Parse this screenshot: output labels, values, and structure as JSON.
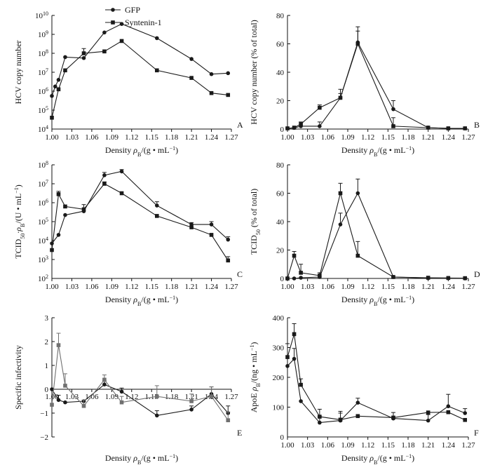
{
  "legend": {
    "items": [
      {
        "label": "GFP",
        "marker": "circle"
      },
      {
        "label": "Syntenin-1",
        "marker": "square"
      }
    ]
  },
  "colors": {
    "series": "#1a1a1a",
    "syntenin_gray": "#707070",
    "axis": "#111111"
  },
  "chart_data": [
    {
      "panel": "A",
      "type": "line",
      "ylabel_parts": [
        "HCV copy number",
        ""
      ],
      "xlabel": [
        "Density ",
        "ρ",
        "B",
        "/(g • mL",
        "−1",
        ")"
      ],
      "x_ticks": [
        "1.00",
        "1.03",
        "1.06",
        "1.09",
        "1.12",
        "1.15",
        "1.18",
        "1.21",
        "1.24",
        "1.27"
      ],
      "xlim": [
        1.0,
        1.27
      ],
      "yscale": "log",
      "ylim": [
        4,
        10
      ],
      "y_ticks": [
        {
          "base": "10",
          "exp": "4",
          "v": 4
        },
        {
          "base": "10",
          "exp": "5",
          "v": 5
        },
        {
          "base": "10",
          "exp": "6",
          "v": 6
        },
        {
          "base": "10",
          "exp": "7",
          "v": 7
        },
        {
          "base": "10",
          "exp": "8",
          "v": 8
        },
        {
          "base": "10",
          "exp": "9",
          "v": 9
        },
        {
          "base": "10",
          "exp": "10",
          "v": 10
        }
      ],
      "series": [
        {
          "name": "GFP",
          "marker": "circle",
          "points": [
            [
              1.0,
              5.75,
              0
            ],
            [
              1.005,
              6.25,
              0
            ],
            [
              1.01,
              6.6,
              0
            ],
            [
              1.02,
              7.8,
              0
            ],
            [
              1.048,
              7.75,
              0
            ],
            [
              1.079,
              9.1,
              0
            ],
            [
              1.105,
              9.55,
              0
            ],
            [
              1.158,
              8.8,
              0
            ],
            [
              1.21,
              7.7,
              0
            ],
            [
              1.24,
              6.9,
              0
            ],
            [
              1.265,
              6.95,
              0
            ]
          ]
        },
        {
          "name": "Syntenin-1",
          "marker": "square",
          "points": [
            [
              1.0,
              4.6,
              0
            ],
            [
              1.01,
              6.1,
              0
            ],
            [
              1.02,
              7.1,
              0
            ],
            [
              1.048,
              8.0,
              0.25
            ],
            [
              1.079,
              8.1,
              0
            ],
            [
              1.105,
              8.65,
              0
            ],
            [
              1.158,
              7.1,
              0
            ],
            [
              1.21,
              6.7,
              0
            ],
            [
              1.24,
              5.9,
              0
            ],
            [
              1.265,
              5.8,
              0
            ]
          ]
        }
      ]
    },
    {
      "panel": "B",
      "type": "line",
      "ylabel_parts": [
        "HCV copy number (% of total)",
        ""
      ],
      "xlabel": [
        "Density ",
        "ρ",
        "B",
        "/(g • mL",
        "−1",
        ")"
      ],
      "x_ticks": [
        "1.00",
        "1.03",
        "1.06",
        "1.09",
        "1.12",
        "1.15",
        "1.18",
        "1.21",
        "1.24",
        "1.27"
      ],
      "xlim": [
        1.0,
        1.27
      ],
      "yscale": "linear",
      "ylim": [
        0,
        80
      ],
      "y_ticks": [
        {
          "label": "0",
          "v": 0
        },
        {
          "label": "20",
          "v": 20
        },
        {
          "label": "40",
          "v": 40
        },
        {
          "label": "60",
          "v": 60
        },
        {
          "label": "80",
          "v": 80
        }
      ],
      "series": [
        {
          "name": "GFP",
          "marker": "circle",
          "points": [
            [
              1.0,
              0.5,
              0
            ],
            [
              1.01,
              0.8,
              0
            ],
            [
              1.02,
              2,
              0
            ],
            [
              1.048,
              2,
              3
            ],
            [
              1.079,
              22,
              3
            ],
            [
              1.105,
              61,
              11
            ],
            [
              1.158,
              14,
              6
            ],
            [
              1.21,
              1,
              0
            ],
            [
              1.24,
              0.5,
              0
            ],
            [
              1.265,
              0.5,
              0
            ]
          ]
        },
        {
          "name": "Syntenin-1",
          "marker": "square",
          "points": [
            [
              1.0,
              0.5,
              0
            ],
            [
              1.01,
              1,
              0
            ],
            [
              1.02,
              3.5,
              1.5
            ],
            [
              1.048,
              15,
              2
            ],
            [
              1.079,
              22,
              6
            ],
            [
              1.105,
              60,
              9
            ],
            [
              1.158,
              2,
              6
            ],
            [
              1.21,
              1,
              0
            ],
            [
              1.24,
              0.5,
              0
            ],
            [
              1.265,
              0.5,
              0
            ]
          ]
        }
      ]
    },
    {
      "panel": "C",
      "type": "line",
      "ylabel_parts": [
        "TCID",
        "50",
        "·ρ",
        "B",
        "/(U • mL",
        "−1",
        ")"
      ],
      "xlabel": [
        "Density ",
        "ρ",
        "B",
        "/(g • mL",
        "−1",
        ")"
      ],
      "x_ticks": [
        "1.00",
        "1.03",
        "1.06",
        "1.09",
        "1.12",
        "1.15",
        "1.18",
        "1.21",
        "1.24",
        "1.27"
      ],
      "xlim": [
        1.0,
        1.27
      ],
      "yscale": "log",
      "ylim": [
        2,
        8
      ],
      "y_ticks": [
        {
          "base": "10",
          "exp": "2",
          "v": 2
        },
        {
          "base": "10",
          "exp": "3",
          "v": 3
        },
        {
          "base": "10",
          "exp": "4",
          "v": 4
        },
        {
          "base": "10",
          "exp": "5",
          "v": 5
        },
        {
          "base": "10",
          "exp": "6",
          "v": 6
        },
        {
          "base": "10",
          "exp": "7",
          "v": 7
        },
        {
          "base": "10",
          "exp": "8",
          "v": 8
        }
      ],
      "series": [
        {
          "name": "GFP",
          "marker": "circle",
          "points": [
            [
              1.0,
              3.85,
              0
            ],
            [
              1.01,
              4.3,
              0
            ],
            [
              1.02,
              5.35,
              0
            ],
            [
              1.048,
              5.55,
              0
            ],
            [
              1.079,
              7.45,
              0.15
            ],
            [
              1.105,
              7.65,
              0.1
            ],
            [
              1.158,
              5.85,
              0.2
            ],
            [
              1.21,
              4.85,
              0.1
            ],
            [
              1.24,
              4.85,
              0.15
            ],
            [
              1.265,
              4.05,
              0.15
            ]
          ]
        },
        {
          "name": "Syntenin-1",
          "marker": "square",
          "points": [
            [
              1.0,
              3.5,
              0
            ],
            [
              1.01,
              6.45,
              0.15
            ],
            [
              1.02,
              5.8,
              0
            ],
            [
              1.048,
              5.65,
              0.25
            ],
            [
              1.079,
              7.0,
              0.1
            ],
            [
              1.105,
              6.5,
              0
            ],
            [
              1.158,
              5.3,
              0
            ],
            [
              1.21,
              4.7,
              0
            ],
            [
              1.24,
              4.3,
              0
            ],
            [
              1.265,
              2.95,
              0.2
            ]
          ]
        }
      ]
    },
    {
      "panel": "D",
      "type": "line",
      "ylabel_parts": [
        "TCID",
        "50",
        " (% of total)"
      ],
      "xlabel": [
        "Density ",
        "ρ",
        "B",
        "/(g • mL",
        "−1",
        ")"
      ],
      "x_ticks": [
        "1.00",
        "1.03",
        "1.06",
        "1.09",
        "1.12",
        "1.15",
        "1.18",
        "1.21",
        "1.24",
        "1.27"
      ],
      "xlim": [
        1.0,
        1.27
      ],
      "yscale": "linear",
      "ylim": [
        0,
        80
      ],
      "y_ticks": [
        {
          "label": "0",
          "v": 0
        },
        {
          "label": "20",
          "v": 20
        },
        {
          "label": "40",
          "v": 40
        },
        {
          "label": "60",
          "v": 60
        },
        {
          "label": "80",
          "v": 80
        }
      ],
      "series": [
        {
          "name": "GFP",
          "marker": "circle",
          "points": [
            [
              1.0,
              0,
              0
            ],
            [
              1.01,
              0,
              0
            ],
            [
              1.02,
              0.5,
              0
            ],
            [
              1.048,
              1,
              0
            ],
            [
              1.079,
              38,
              8
            ],
            [
              1.105,
              60,
              10
            ],
            [
              1.158,
              1,
              0
            ],
            [
              1.21,
              0.3,
              0
            ],
            [
              1.24,
              0.3,
              0
            ],
            [
              1.265,
              0,
              0
            ]
          ]
        },
        {
          "name": "Syntenin-1",
          "marker": "square",
          "points": [
            [
              1.0,
              0,
              0
            ],
            [
              1.01,
              16,
              3
            ],
            [
              1.02,
              4,
              6
            ],
            [
              1.048,
              2,
              2
            ],
            [
              1.079,
              60,
              7
            ],
            [
              1.105,
              16,
              10
            ],
            [
              1.158,
              1,
              0
            ],
            [
              1.21,
              0.5,
              0
            ],
            [
              1.24,
              0.3,
              0
            ],
            [
              1.265,
              0.2,
              0
            ]
          ]
        }
      ]
    },
    {
      "panel": "E",
      "type": "line",
      "ylabel_parts": [
        "Specific infectivity",
        ""
      ],
      "xlabel": [
        "Density ",
        "ρ",
        "B",
        "/(g • mL",
        "−1",
        ")"
      ],
      "x_ticks": [
        "1.00",
        "1.03",
        "1.06",
        "1.09",
        "1.12",
        "1.15",
        "1.18",
        "1.21",
        "1.24",
        "1.27"
      ],
      "xlim": [
        1.0,
        1.27
      ],
      "yscale": "linear",
      "ylim": [
        -2,
        3
      ],
      "y_ticks": [
        {
          "label": "−2",
          "v": -2
        },
        {
          "label": "−1",
          "v": -1
        },
        {
          "label": "0",
          "v": 0
        },
        {
          "label": "1",
          "v": 1
        },
        {
          "label": "2",
          "v": 2
        },
        {
          "label": "3",
          "v": 3
        }
      ],
      "series": [
        {
          "name": "GFP",
          "marker": "circle",
          "points": [
            [
              1.0,
              0,
              0
            ],
            [
              1.01,
              -0.45,
              0.2
            ],
            [
              1.02,
              -0.55,
              0
            ],
            [
              1.048,
              -0.5,
              0
            ],
            [
              1.079,
              0.2,
              0.15
            ],
            [
              1.105,
              -0.1,
              0.15
            ],
            [
              1.158,
              -1.1,
              0.2
            ],
            [
              1.21,
              -0.85,
              0.15
            ],
            [
              1.24,
              -0.2,
              0.3
            ],
            [
              1.265,
              -1.0,
              0.3
            ]
          ]
        },
        {
          "name": "Syntenin-1",
          "marker": "square",
          "points": [
            [
              1.0,
              -0.65,
              0
            ],
            [
              1.01,
              1.85,
              0.5
            ],
            [
              1.02,
              0.15,
              0.5
            ],
            [
              1.048,
              -0.7,
              0.25
            ],
            [
              1.079,
              0.4,
              0.2
            ],
            [
              1.105,
              -0.55,
              0.25
            ],
            [
              1.158,
              -0.3,
              0.45
            ],
            [
              1.21,
              -0.5,
              0.3
            ],
            [
              1.24,
              -0.3,
              0.4
            ],
            [
              1.265,
              -1.3,
              0.35
            ]
          ]
        }
      ]
    },
    {
      "panel": "F",
      "type": "line",
      "ylabel_parts": [
        "ApoE ",
        "ρ",
        "B",
        "/(ng • mL",
        "−1",
        ")"
      ],
      "xlabel": [
        "Density ",
        "ρ",
        "B",
        "/(g • mL",
        "−1",
        ")"
      ],
      "x_ticks": [
        "1.00",
        "1.03",
        "1.06",
        "1.09",
        "1.12",
        "1.15",
        "1.18",
        "1.21",
        "1.24",
        "1.27"
      ],
      "xlim": [
        1.0,
        1.27
      ],
      "yscale": "linear",
      "ylim": [
        0,
        400
      ],
      "y_ticks": [
        {
          "label": "0",
          "v": 0
        },
        {
          "label": "100",
          "v": 100
        },
        {
          "label": "200",
          "v": 200
        },
        {
          "label": "300",
          "v": 300
        },
        {
          "label": "400",
          "v": 400
        }
      ],
      "series": [
        {
          "name": "GFP",
          "marker": "circle",
          "points": [
            [
              1.0,
              238,
              0
            ],
            [
              1.01,
              262,
              35
            ],
            [
              1.02,
              120,
              0
            ],
            [
              1.048,
              48,
              20
            ],
            [
              1.079,
              55,
              25
            ],
            [
              1.105,
              115,
              15
            ],
            [
              1.158,
              62,
              20
            ],
            [
              1.21,
              55,
              20
            ],
            [
              1.24,
              103,
              40
            ],
            [
              1.265,
              80,
              15
            ]
          ]
        },
        {
          "name": "Syntenin-1",
          "marker": "square",
          "points": [
            [
              1.0,
              268,
              45
            ],
            [
              1.01,
              345,
              35
            ],
            [
              1.02,
              175,
              20
            ],
            [
              1.048,
              68,
              25
            ],
            [
              1.079,
              58,
              28
            ],
            [
              1.105,
              70,
              0
            ],
            [
              1.158,
              65,
              0
            ],
            [
              1.21,
              82,
              0
            ],
            [
              1.24,
              83,
              0
            ],
            [
              1.265,
              57,
              0
            ]
          ]
        }
      ]
    }
  ]
}
